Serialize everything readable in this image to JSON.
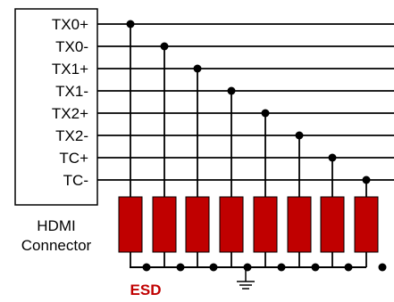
{
  "connector": {
    "pins": [
      "TX0+",
      "TX0-",
      "TX1+",
      "TX1-",
      "TX2+",
      "TX2-",
      "TC+",
      "TC-"
    ],
    "caption_line1": "HDMI",
    "caption_line2": "Connector"
  },
  "esd": {
    "label": "ESD",
    "device_count": 8
  },
  "colors": {
    "esd_fill": "#c00000",
    "line": "#000000",
    "esd_text": "#c00000"
  },
  "icons": {
    "ground": "ground-icon"
  }
}
